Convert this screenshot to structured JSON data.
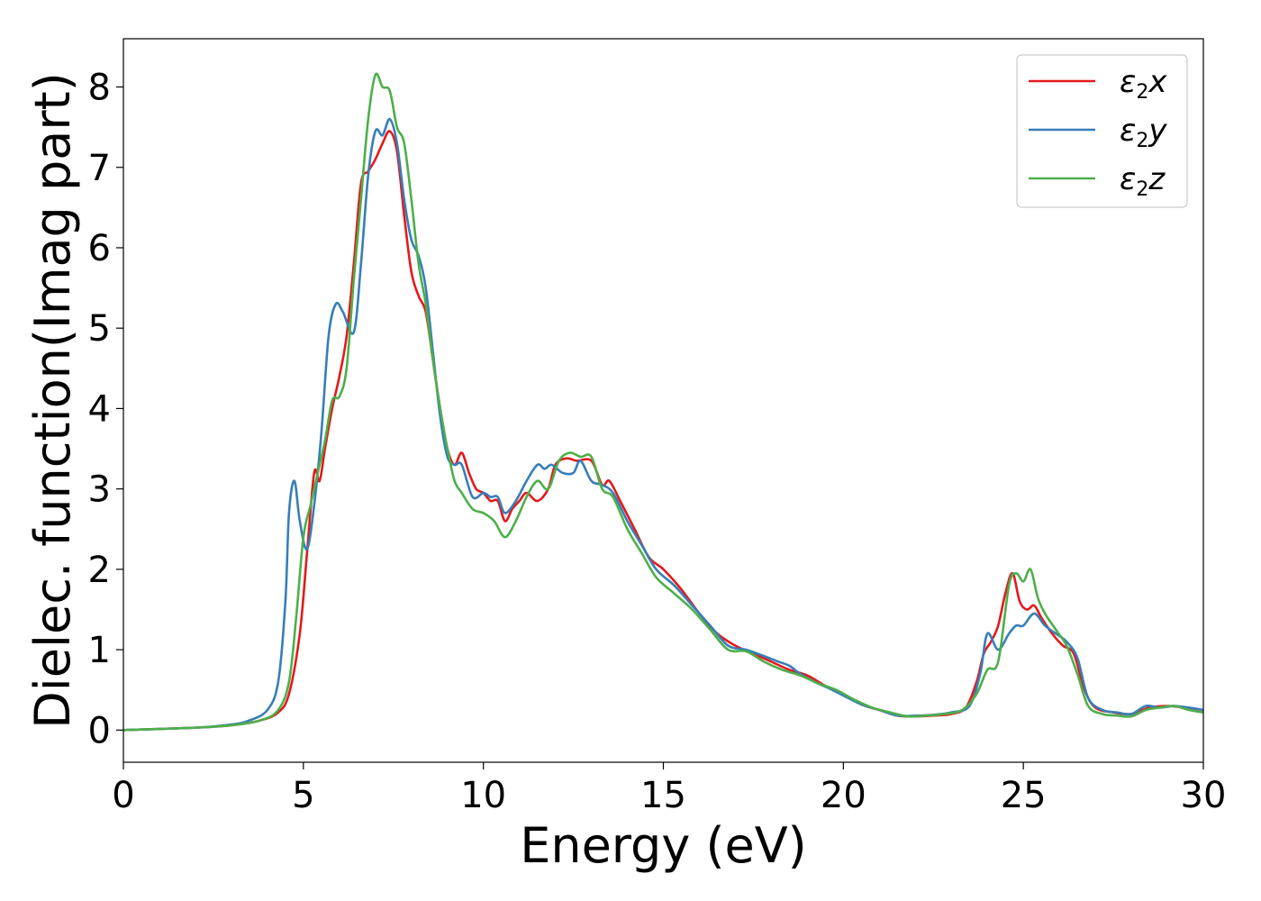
{
  "chart_data": {
    "type": "line",
    "xlabel": "Energy (eV)",
    "ylabel": "Dielec. function(Imag part)",
    "xlim": [
      0,
      30
    ],
    "ylim": [
      -0.4,
      8.6
    ],
    "xticks": [
      0,
      5,
      10,
      15,
      20,
      25,
      30
    ],
    "yticks": [
      0,
      1,
      2,
      3,
      4,
      5,
      6,
      7,
      8
    ],
    "grid": false,
    "legend_position": "top-right",
    "series": [
      {
        "name": "ε2x",
        "legend_base": "ε",
        "legend_sub": "2",
        "legend_var": "x",
        "color": "#e41a1c",
        "points": [
          [
            0,
            0.0
          ],
          [
            2,
            0.03
          ],
          [
            3,
            0.06
          ],
          [
            3.8,
            0.12
          ],
          [
            4.3,
            0.22
          ],
          [
            4.6,
            0.45
          ],
          [
            4.9,
            1.2
          ],
          [
            5.1,
            2.2
          ],
          [
            5.3,
            3.2
          ],
          [
            5.45,
            3.1
          ],
          [
            5.6,
            3.5
          ],
          [
            5.8,
            4.0
          ],
          [
            6.0,
            4.4
          ],
          [
            6.2,
            4.9
          ],
          [
            6.4,
            5.8
          ],
          [
            6.6,
            6.8
          ],
          [
            6.8,
            6.95
          ],
          [
            7.0,
            7.1
          ],
          [
            7.2,
            7.3
          ],
          [
            7.4,
            7.45
          ],
          [
            7.6,
            7.2
          ],
          [
            7.8,
            6.4
          ],
          [
            8.0,
            5.7
          ],
          [
            8.2,
            5.4
          ],
          [
            8.4,
            5.2
          ],
          [
            8.6,
            4.6
          ],
          [
            8.8,
            4.0
          ],
          [
            9.0,
            3.5
          ],
          [
            9.2,
            3.3
          ],
          [
            9.4,
            3.45
          ],
          [
            9.6,
            3.2
          ],
          [
            9.8,
            3.0
          ],
          [
            10.0,
            2.95
          ],
          [
            10.2,
            2.85
          ],
          [
            10.4,
            2.85
          ],
          [
            10.6,
            2.6
          ],
          [
            10.8,
            2.75
          ],
          [
            11.0,
            2.85
          ],
          [
            11.2,
            2.95
          ],
          [
            11.5,
            2.85
          ],
          [
            11.8,
            3.0
          ],
          [
            12.0,
            3.3
          ],
          [
            12.3,
            3.38
          ],
          [
            12.6,
            3.35
          ],
          [
            13.0,
            3.35
          ],
          [
            13.3,
            3.05
          ],
          [
            13.5,
            3.1
          ],
          [
            13.8,
            2.85
          ],
          [
            14.2,
            2.5
          ],
          [
            14.6,
            2.15
          ],
          [
            15.0,
            2.0
          ],
          [
            15.5,
            1.75
          ],
          [
            16.0,
            1.45
          ],
          [
            16.5,
            1.2
          ],
          [
            17.0,
            1.05
          ],
          [
            17.5,
            0.95
          ],
          [
            18.0,
            0.85
          ],
          [
            18.5,
            0.75
          ],
          [
            19.0,
            0.68
          ],
          [
            19.5,
            0.55
          ],
          [
            20.0,
            0.45
          ],
          [
            20.5,
            0.32
          ],
          [
            21.0,
            0.25
          ],
          [
            21.5,
            0.18
          ],
          [
            22.0,
            0.17
          ],
          [
            22.5,
            0.18
          ],
          [
            23.0,
            0.2
          ],
          [
            23.4,
            0.28
          ],
          [
            23.7,
            0.6
          ],
          [
            23.9,
            0.95
          ],
          [
            24.1,
            1.1
          ],
          [
            24.3,
            1.3
          ],
          [
            24.5,
            1.7
          ],
          [
            24.7,
            1.95
          ],
          [
            24.9,
            1.6
          ],
          [
            25.1,
            1.5
          ],
          [
            25.3,
            1.55
          ],
          [
            25.5,
            1.4
          ],
          [
            25.8,
            1.2
          ],
          [
            26.1,
            1.05
          ],
          [
            26.4,
            0.95
          ],
          [
            26.7,
            0.5
          ],
          [
            27.0,
            0.28
          ],
          [
            27.5,
            0.22
          ],
          [
            28.0,
            0.2
          ],
          [
            28.5,
            0.28
          ],
          [
            29.0,
            0.3
          ],
          [
            29.5,
            0.28
          ],
          [
            30.0,
            0.25
          ]
        ]
      },
      {
        "name": "ε2y",
        "legend_base": "ε",
        "legend_sub": "2",
        "legend_var": "y",
        "color": "#377eb8",
        "points": [
          [
            0,
            0.0
          ],
          [
            2,
            0.03
          ],
          [
            3,
            0.07
          ],
          [
            3.5,
            0.12
          ],
          [
            4.0,
            0.25
          ],
          [
            4.3,
            0.6
          ],
          [
            4.5,
            1.6
          ],
          [
            4.6,
            2.7
          ],
          [
            4.75,
            3.1
          ],
          [
            4.9,
            2.6
          ],
          [
            5.1,
            2.25
          ],
          [
            5.3,
            2.8
          ],
          [
            5.5,
            3.7
          ],
          [
            5.7,
            4.9
          ],
          [
            5.9,
            5.3
          ],
          [
            6.1,
            5.2
          ],
          [
            6.4,
            4.95
          ],
          [
            6.6,
            5.8
          ],
          [
            6.8,
            6.9
          ],
          [
            7.0,
            7.45
          ],
          [
            7.2,
            7.4
          ],
          [
            7.4,
            7.6
          ],
          [
            7.6,
            7.3
          ],
          [
            7.8,
            6.6
          ],
          [
            8.0,
            6.1
          ],
          [
            8.2,
            5.9
          ],
          [
            8.4,
            5.5
          ],
          [
            8.6,
            4.7
          ],
          [
            8.8,
            3.9
          ],
          [
            9.0,
            3.4
          ],
          [
            9.2,
            3.3
          ],
          [
            9.4,
            3.3
          ],
          [
            9.7,
            2.9
          ],
          [
            10.0,
            2.95
          ],
          [
            10.2,
            2.9
          ],
          [
            10.4,
            2.9
          ],
          [
            10.6,
            2.7
          ],
          [
            10.9,
            2.85
          ],
          [
            11.2,
            3.1
          ],
          [
            11.5,
            3.3
          ],
          [
            11.7,
            3.25
          ],
          [
            11.9,
            3.3
          ],
          [
            12.2,
            3.2
          ],
          [
            12.5,
            3.2
          ],
          [
            12.7,
            3.35
          ],
          [
            13.0,
            3.1
          ],
          [
            13.3,
            3.05
          ],
          [
            13.6,
            2.95
          ],
          [
            14.0,
            2.6
          ],
          [
            14.4,
            2.3
          ],
          [
            14.8,
            2.0
          ],
          [
            15.3,
            1.8
          ],
          [
            15.8,
            1.55
          ],
          [
            16.3,
            1.3
          ],
          [
            16.8,
            1.05
          ],
          [
            17.3,
            1.0
          ],
          [
            17.8,
            0.92
          ],
          [
            18.2,
            0.85
          ],
          [
            18.5,
            0.8
          ],
          [
            18.8,
            0.7
          ],
          [
            19.2,
            0.6
          ],
          [
            19.6,
            0.52
          ],
          [
            20.0,
            0.43
          ],
          [
            20.5,
            0.32
          ],
          [
            21.0,
            0.25
          ],
          [
            21.5,
            0.18
          ],
          [
            22.0,
            0.18
          ],
          [
            22.5,
            0.19
          ],
          [
            23.0,
            0.22
          ],
          [
            23.5,
            0.3
          ],
          [
            23.8,
            0.7
          ],
          [
            24.0,
            1.2
          ],
          [
            24.3,
            1.0
          ],
          [
            24.6,
            1.2
          ],
          [
            24.8,
            1.3
          ],
          [
            25.0,
            1.3
          ],
          [
            25.3,
            1.45
          ],
          [
            25.6,
            1.3
          ],
          [
            25.9,
            1.2
          ],
          [
            26.2,
            1.1
          ],
          [
            26.5,
            0.9
          ],
          [
            26.8,
            0.4
          ],
          [
            27.2,
            0.25
          ],
          [
            27.6,
            0.22
          ],
          [
            28.0,
            0.2
          ],
          [
            28.4,
            0.3
          ],
          [
            28.8,
            0.28
          ],
          [
            29.2,
            0.3
          ],
          [
            29.6,
            0.28
          ],
          [
            30.0,
            0.25
          ]
        ]
      },
      {
        "name": "ε2z",
        "legend_base": "ε",
        "legend_sub": "2",
        "legend_var": "z",
        "color": "#4daf4a",
        "points": [
          [
            0,
            0.0
          ],
          [
            2,
            0.03
          ],
          [
            3,
            0.06
          ],
          [
            3.8,
            0.12
          ],
          [
            4.3,
            0.25
          ],
          [
            4.6,
            0.6
          ],
          [
            4.8,
            1.4
          ],
          [
            5.0,
            2.4
          ],
          [
            5.2,
            2.8
          ],
          [
            5.4,
            3.2
          ],
          [
            5.6,
            3.6
          ],
          [
            5.8,
            4.1
          ],
          [
            6.0,
            4.15
          ],
          [
            6.2,
            4.5
          ],
          [
            6.4,
            5.6
          ],
          [
            6.6,
            6.6
          ],
          [
            6.8,
            7.6
          ],
          [
            7.0,
            8.15
          ],
          [
            7.2,
            8.0
          ],
          [
            7.4,
            7.95
          ],
          [
            7.6,
            7.5
          ],
          [
            7.8,
            7.3
          ],
          [
            8.0,
            6.6
          ],
          [
            8.2,
            5.8
          ],
          [
            8.4,
            5.3
          ],
          [
            8.6,
            4.6
          ],
          [
            8.8,
            4.0
          ],
          [
            9.0,
            3.5
          ],
          [
            9.2,
            3.1
          ],
          [
            9.4,
            2.95
          ],
          [
            9.7,
            2.75
          ],
          [
            10.0,
            2.7
          ],
          [
            10.3,
            2.6
          ],
          [
            10.6,
            2.4
          ],
          [
            10.9,
            2.6
          ],
          [
            11.2,
            2.9
          ],
          [
            11.5,
            3.1
          ],
          [
            11.8,
            3.0
          ],
          [
            12.1,
            3.35
          ],
          [
            12.4,
            3.45
          ],
          [
            12.7,
            3.4
          ],
          [
            13.0,
            3.4
          ],
          [
            13.3,
            3.0
          ],
          [
            13.6,
            2.9
          ],
          [
            14.0,
            2.5
          ],
          [
            14.4,
            2.2
          ],
          [
            14.8,
            1.9
          ],
          [
            15.3,
            1.7
          ],
          [
            15.8,
            1.5
          ],
          [
            16.3,
            1.25
          ],
          [
            16.8,
            1.0
          ],
          [
            17.3,
            0.98
          ],
          [
            17.8,
            0.85
          ],
          [
            18.3,
            0.75
          ],
          [
            18.8,
            0.68
          ],
          [
            19.3,
            0.58
          ],
          [
            19.8,
            0.5
          ],
          [
            20.3,
            0.38
          ],
          [
            20.8,
            0.28
          ],
          [
            21.3,
            0.22
          ],
          [
            21.8,
            0.17
          ],
          [
            22.3,
            0.18
          ],
          [
            22.8,
            0.2
          ],
          [
            23.3,
            0.25
          ],
          [
            23.7,
            0.45
          ],
          [
            24.0,
            0.75
          ],
          [
            24.3,
            0.85
          ],
          [
            24.6,
            1.8
          ],
          [
            24.8,
            1.95
          ],
          [
            25.0,
            1.85
          ],
          [
            25.2,
            2.0
          ],
          [
            25.4,
            1.65
          ],
          [
            25.6,
            1.45
          ],
          [
            25.9,
            1.25
          ],
          [
            26.2,
            1.05
          ],
          [
            26.5,
            0.7
          ],
          [
            26.8,
            0.3
          ],
          [
            27.2,
            0.2
          ],
          [
            27.6,
            0.18
          ],
          [
            28.0,
            0.17
          ],
          [
            28.4,
            0.25
          ],
          [
            28.8,
            0.28
          ],
          [
            29.2,
            0.3
          ],
          [
            29.6,
            0.25
          ],
          [
            30.0,
            0.22
          ]
        ]
      }
    ]
  }
}
